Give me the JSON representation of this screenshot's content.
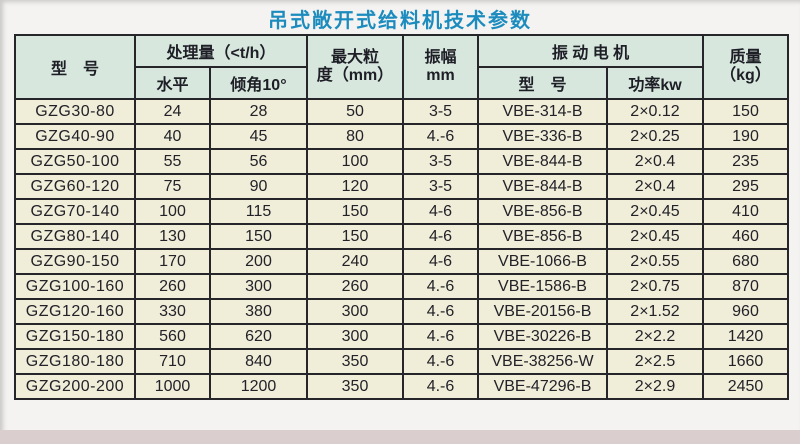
{
  "title": "吊式敞开式给料机技术参数",
  "colors": {
    "title_blue": "#1c8cbe",
    "header_bg": "#d7e7de",
    "cell_bg": "#f0edd9",
    "grid_line": "#26262a",
    "bottom_strip": "#dacfce"
  },
  "table": {
    "header": {
      "model": "型　号",
      "capacity": {
        "label": "处理量（<t/h）",
        "horizontal": "水平",
        "incline": "倾角10°"
      },
      "max_size": {
        "line1": "最大粒",
        "line2": "度（mm）"
      },
      "amplitude": {
        "line1": "振幅",
        "line2": "mm"
      },
      "motor": {
        "label": "振 动 电 机",
        "model": "型　号",
        "power": "功率kw"
      },
      "mass": {
        "line1": "质量",
        "line2": "（kg）"
      }
    },
    "rows": [
      [
        "GZG30-80",
        "24",
        "28",
        "50",
        "3-5",
        "VBE-314-B",
        "2×0.12",
        "150"
      ],
      [
        "GZG40-90",
        "40",
        "45",
        "80",
        "4.-6",
        "VBE-336-B",
        "2×0.25",
        "190"
      ],
      [
        "GZG50-100",
        "55",
        "56",
        "100",
        "3-5",
        "VBE-844-B",
        "2×0.4",
        "235"
      ],
      [
        "GZG60-120",
        "75",
        "90",
        "120",
        "3-5",
        "VBE-844-B",
        "2×0.4",
        "295"
      ],
      [
        "GZG70-140",
        "100",
        "115",
        "150",
        "4-6",
        "VBE-856-B",
        "2×0.45",
        "410"
      ],
      [
        "GZG80-140",
        "130",
        "150",
        "150",
        "4-6",
        "VBE-856-B",
        "2×0.45",
        "460"
      ],
      [
        "GZG90-150",
        "170",
        "200",
        "240",
        "4-6",
        "VBE-1066-B",
        "2×0.55",
        "680"
      ],
      [
        "GZG100-160",
        "260",
        "300",
        "260",
        "4.-6",
        "VBE-1586-B",
        "2×0.75",
        "870"
      ],
      [
        "GZG120-160",
        "330",
        "380",
        "300",
        "4.-6",
        "VBE-20156-B",
        "2×1.52",
        "960"
      ],
      [
        "GZG150-180",
        "560",
        "620",
        "300",
        "4.-6",
        "VBE-30226-B",
        "2×2.2",
        "1420"
      ],
      [
        "GZG180-180",
        "710",
        "840",
        "350",
        "4.-6",
        "VBE-38256-W",
        "2×2.5",
        "1660"
      ],
      [
        "GZG200-200",
        "1000",
        "1200",
        "350",
        "4.-6",
        "VBE-47296-B",
        "2×2.9",
        "2450"
      ]
    ],
    "column_names": [
      "model",
      "capacity-horizontal",
      "capacity-incline",
      "max-size",
      "amplitude",
      "motor-model",
      "motor-power",
      "mass"
    ]
  }
}
